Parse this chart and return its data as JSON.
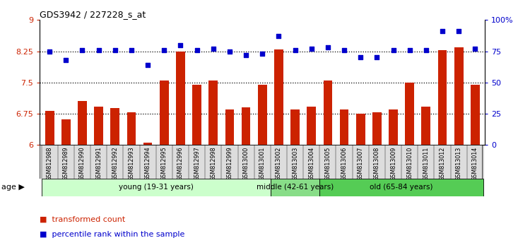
{
  "title": "GDS3942 / 227228_s_at",
  "samples": [
    "GSM812988",
    "GSM812989",
    "GSM812990",
    "GSM812991",
    "GSM812992",
    "GSM812993",
    "GSM812994",
    "GSM812995",
    "GSM812996",
    "GSM812997",
    "GSM812998",
    "GSM812999",
    "GSM813000",
    "GSM813001",
    "GSM813002",
    "GSM813003",
    "GSM813004",
    "GSM813005",
    "GSM813006",
    "GSM813007",
    "GSM813008",
    "GSM813009",
    "GSM813010",
    "GSM813011",
    "GSM813012",
    "GSM813013",
    "GSM813014"
  ],
  "bar_values": [
    6.82,
    6.62,
    7.05,
    6.92,
    6.88,
    6.78,
    6.05,
    7.55,
    8.25,
    7.45,
    7.55,
    6.85,
    6.9,
    7.45,
    8.3,
    6.85,
    6.92,
    7.55,
    6.85,
    6.75,
    6.78,
    6.85,
    7.5,
    6.92,
    8.28,
    8.35,
    7.45
  ],
  "percentile_values": [
    75,
    68,
    76,
    76,
    76,
    76,
    64,
    76,
    80,
    76,
    77,
    75,
    72,
    73,
    87,
    76,
    77,
    78,
    76,
    70,
    70,
    76,
    76,
    76,
    91,
    91,
    77
  ],
  "bar_color": "#cc2200",
  "dot_color": "#0000cc",
  "ylim_left": [
    6.0,
    9.0
  ],
  "ylim_right": [
    0,
    100
  ],
  "yticks_left": [
    6.0,
    6.75,
    7.5,
    8.25,
    9.0
  ],
  "ytick_labels_left": [
    "6",
    "6.75",
    "7.5",
    "8.25",
    "9"
  ],
  "yticks_right": [
    0,
    25,
    50,
    75,
    100
  ],
  "ytick_labels_right": [
    "0",
    "25",
    "50",
    "75",
    "100%"
  ],
  "hlines": [
    6.75,
    7.5,
    8.25
  ],
  "groups": [
    {
      "label": "young (19-31 years)",
      "start": 0,
      "end": 14,
      "color": "#ccffcc"
    },
    {
      "label": "middle (42-61 years)",
      "start": 14,
      "end": 17,
      "color": "#88dd88"
    },
    {
      "label": "old (65-84 years)",
      "start": 17,
      "end": 27,
      "color": "#55cc55"
    }
  ],
  "age_label": "age",
  "legend_bar_label": "transformed count",
  "legend_dot_label": "percentile rank within the sample",
  "bar_width": 0.55,
  "background_color": "#ffffff",
  "tick_bg_color": "#dddddd"
}
